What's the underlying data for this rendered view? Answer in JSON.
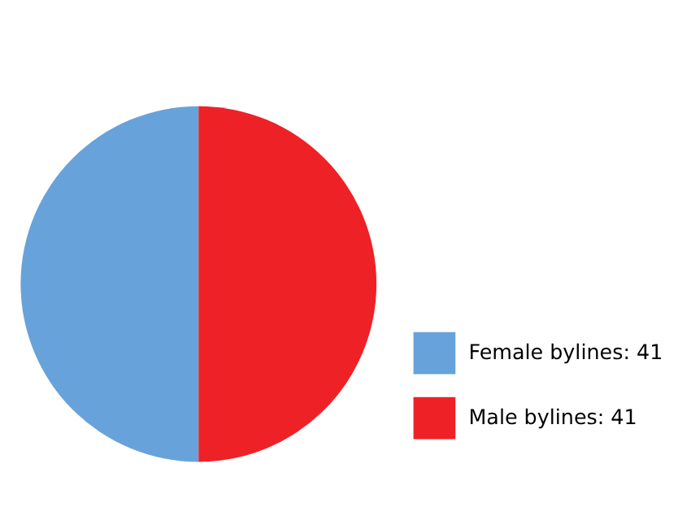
{
  "chart_data": {
    "type": "pie",
    "categories": [
      "Female bylines: 41",
      "Male bylines: 41"
    ],
    "values": [
      41,
      41
    ],
    "colors": [
      "#67a3da",
      "#ee2127"
    ],
    "legend": "bottom right"
  }
}
